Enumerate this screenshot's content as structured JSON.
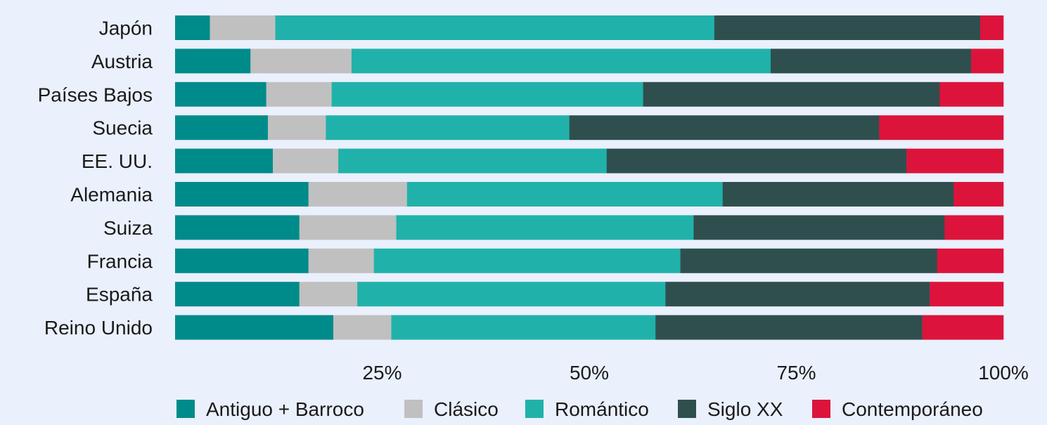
{
  "chart_data": {
    "type": "bar",
    "orientation": "horizontal",
    "stacking": "percent",
    "categories": [
      "Japón",
      "Austria",
      "Países Bajos",
      "Suecia",
      "EE. UU.",
      "Alemania",
      "Suiza",
      "Francia",
      "España",
      "Reino Unido"
    ],
    "series": [
      {
        "name": "Antiguo + Barroco",
        "color": "#008b8b",
        "values": [
          4.2,
          9.1,
          11.0,
          11.2,
          11.8,
          16.1,
          15.0,
          16.1,
          15.0,
          19.1
        ]
      },
      {
        "name": "Clásico",
        "color": "#c0c0c0",
        "values": [
          7.9,
          12.2,
          7.9,
          7.0,
          7.9,
          11.9,
          11.7,
          7.9,
          7.0,
          7.0
        ]
      },
      {
        "name": "Romántico",
        "color": "#20b2aa",
        "values": [
          53.0,
          50.6,
          37.6,
          29.4,
          32.4,
          38.1,
          35.9,
          37.0,
          37.2,
          31.9
        ]
      },
      {
        "name": "Siglo XX",
        "color": "#2f4f4f",
        "values": [
          32.1,
          24.2,
          35.8,
          37.4,
          36.2,
          27.9,
          30.3,
          31.0,
          31.9,
          32.2
        ]
      },
      {
        "name": "Contemporáneo",
        "color": "#dc143c",
        "values": [
          2.8,
          3.9,
          7.7,
          15.0,
          11.7,
          6.0,
          7.1,
          8.0,
          8.9,
          9.8
        ]
      }
    ],
    "xlim": [
      0,
      100
    ],
    "xticks": [
      "25%",
      "50%",
      "75%",
      "100%"
    ],
    "xtick_values": [
      25,
      50,
      75,
      100
    ],
    "legend_position": "bottom",
    "grid": false
  }
}
